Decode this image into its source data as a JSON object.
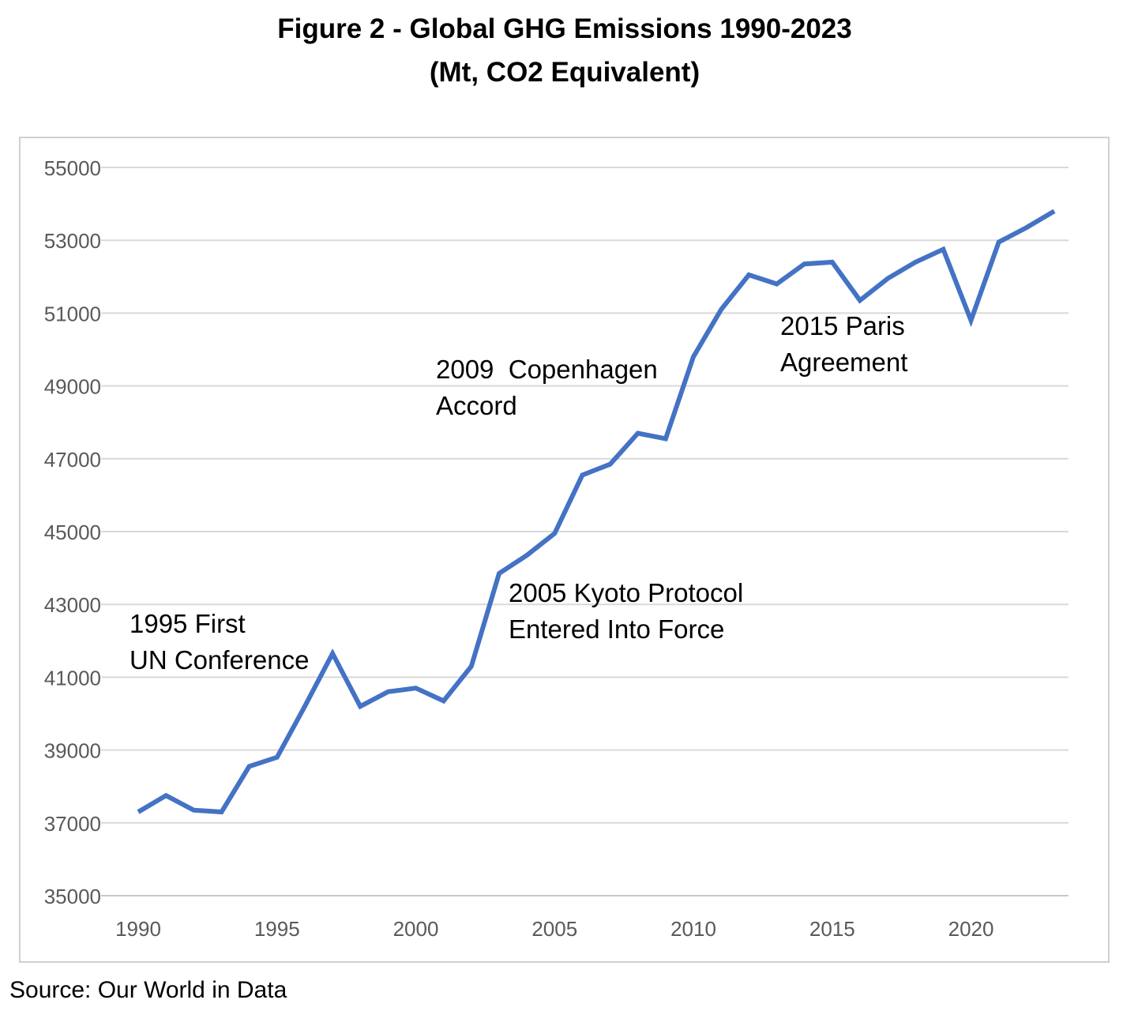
{
  "chart_data": {
    "type": "line",
    "title": [
      "Figure 2 - Global GHG Emissions 1990-2023",
      "(Mt, CO2 Equivalent)"
    ],
    "xlabel": "",
    "ylabel": "",
    "xlim": [
      1990,
      2023
    ],
    "ylim": [
      35000,
      55000
    ],
    "yticks": [
      35000,
      37000,
      39000,
      41000,
      43000,
      45000,
      47000,
      49000,
      51000,
      53000,
      55000
    ],
    "xticks": [
      1990,
      1995,
      2000,
      2005,
      2010,
      2015,
      2020
    ],
    "grid": true,
    "legend": "none",
    "line_color": "#4472C4",
    "series": [
      {
        "name": "Global GHG Emissions",
        "x": [
          1990,
          1991,
          1992,
          1993,
          1994,
          1995,
          1996,
          1997,
          1998,
          1999,
          2000,
          2001,
          2002,
          2003,
          2004,
          2005,
          2006,
          2007,
          2008,
          2009,
          2010,
          2011,
          2012,
          2013,
          2014,
          2015,
          2016,
          2017,
          2018,
          2019,
          2020,
          2021,
          2022,
          2023
        ],
        "values": [
          37300,
          37750,
          37350,
          37300,
          38550,
          38800,
          40200,
          41650,
          40200,
          40600,
          40700,
          40350,
          41300,
          43850,
          44350,
          44950,
          46550,
          46850,
          47700,
          47550,
          49800,
          51100,
          52050,
          51800,
          52350,
          52400,
          51350,
          51950,
          52400,
          52750,
          50800,
          52950,
          53350,
          53800
        ]
      }
    ],
    "annotations": [
      {
        "lines": [
          "1995 First",
          "UN Conference"
        ]
      },
      {
        "lines": [
          "2005 Kyoto Protocol",
          "Entered Into Force"
        ]
      },
      {
        "lines": [
          "2009  Copenhagen",
          "Accord"
        ]
      },
      {
        "lines": [
          "2015 Paris",
          "Agreement"
        ]
      }
    ]
  },
  "source": "Source:  Our World in Data"
}
